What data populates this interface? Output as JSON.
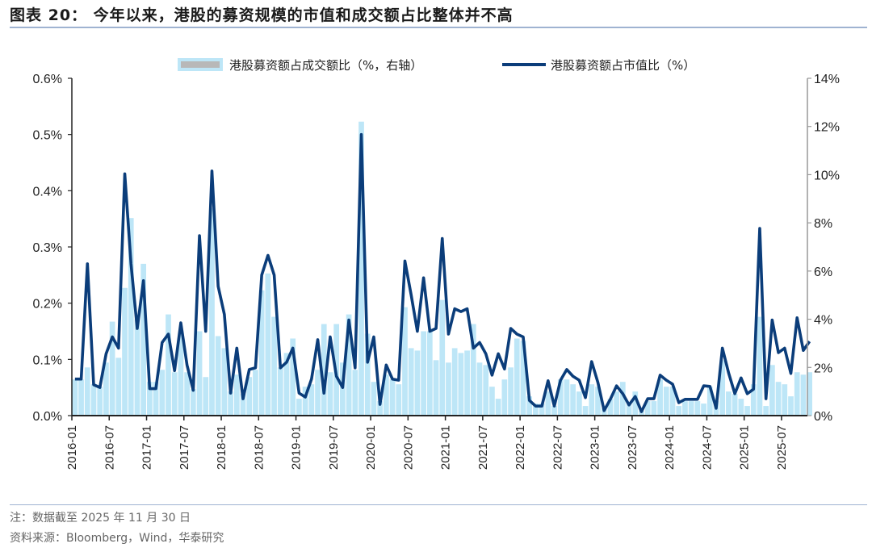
{
  "header": {
    "title": "图表 20：  今年以来，港股的募资规模的市值和成交额占比整体并不高"
  },
  "footer": {
    "note": "注：数据截至 2025 年 11 月 30 日",
    "source": "资料来源：Bloomberg，Wind，华泰研究"
  },
  "colors": {
    "line": "#0b3d7a",
    "bar": "#bde6f7",
    "legend_bar_inner": "#b8b8b8",
    "axis_left": "#222222",
    "axis_right": "#999999",
    "rule": "#9fb3d1"
  },
  "chart_data": {
    "type": "bar+line",
    "title": "今年以来，港股的募资规模的市值和成交额占比整体并不高",
    "legend": [
      {
        "name": "港股募资额占成交额比（%，右轴）",
        "type": "bar",
        "axis": "right"
      },
      {
        "name": "港股募资额占市值比（%）",
        "type": "line",
        "axis": "left"
      }
    ],
    "legend_position": "top",
    "left_axis": {
      "min": 0,
      "max": 0.6,
      "ticks": [
        "0.0%",
        "0.1%",
        "0.2%",
        "0.3%",
        "0.4%",
        "0.5%",
        "0.6%"
      ]
    },
    "right_axis": {
      "min": 0,
      "max": 14,
      "ticks": [
        "0%",
        "2%",
        "4%",
        "6%",
        "8%",
        "10%",
        "12%",
        "14%"
      ]
    },
    "x_tick_labels": [
      "2016-01",
      "2016-07",
      "2017-01",
      "2017-07",
      "2018-01",
      "2018-07",
      "2019-01",
      "2019-07",
      "2020-01",
      "2020-07",
      "2021-01",
      "2021-07",
      "2022-01",
      "2022-07",
      "2023-01",
      "2023-07",
      "2024-01",
      "2024-07",
      "2025-01",
      "2025-07"
    ],
    "x_start": "2016-01",
    "x_end": "2025-11",
    "grid": false,
    "series": [
      {
        "name": "港股募资额占成交额比（%，右轴）",
        "type": "bar",
        "axis": "right",
        "values": [
          1.5,
          1.5,
          2.0,
          1.3,
          1.2,
          2.2,
          3.9,
          2.4,
          5.3,
          8.2,
          4.0,
          6.3,
          1.4,
          1.4,
          1.9,
          4.2,
          1.8,
          3.4,
          1.8,
          1.1,
          3.5,
          1.6,
          8.6,
          3.3,
          2.8,
          1.0,
          1.7,
          0.9,
          1.6,
          1.9,
          5.2,
          5.9,
          4.1,
          2.0,
          2.6,
          3.2,
          0.7,
          1.2,
          1.3,
          1.9,
          3.8,
          1.8,
          3.8,
          2.2,
          4.2,
          1.9,
          12.2,
          3.4,
          1.4,
          0.6,
          1.7,
          1.5,
          1.3,
          4.5,
          2.8,
          2.7,
          3.5,
          3.5,
          2.3,
          4.8,
          2.2,
          2.8,
          2.6,
          2.7,
          3.8,
          2.2,
          2.1,
          1.2,
          0.7,
          1.5,
          2.0,
          3.2,
          3.1,
          0.8,
          0.5,
          0.5,
          1.0,
          0.4,
          1.5,
          1.5,
          1.3,
          1.0,
          0.4,
          1.3,
          1.2,
          0.3,
          0.7,
          1.0,
          1.4,
          0.5,
          1.0,
          0.2,
          0.6,
          0.6,
          1.5,
          1.2,
          1.2,
          0.4,
          0.6,
          0.6,
          0.6,
          0.5,
          1.2,
          0.6,
          2.3,
          1.0,
          0.9,
          0.7,
          0.4,
          1.3,
          4.1,
          0.4,
          2.1,
          1.4,
          1.3,
          0.8,
          1.8,
          1.7,
          1.8
        ]
      },
      {
        "name": "港股募资额占市值比（%）",
        "type": "line",
        "axis": "left",
        "values": [
          0.065,
          0.065,
          0.27,
          0.055,
          0.05,
          0.11,
          0.14,
          0.12,
          0.43,
          0.27,
          0.155,
          0.24,
          0.048,
          0.048,
          0.13,
          0.145,
          0.08,
          0.165,
          0.09,
          0.045,
          0.32,
          0.15,
          0.435,
          0.23,
          0.18,
          0.04,
          0.12,
          0.03,
          0.082,
          0.085,
          0.25,
          0.285,
          0.25,
          0.085,
          0.095,
          0.12,
          0.04,
          0.033,
          0.065,
          0.135,
          0.04,
          0.14,
          0.07,
          0.05,
          0.17,
          0.085,
          0.5,
          0.095,
          0.14,
          0.02,
          0.09,
          0.065,
          0.063,
          0.275,
          0.215,
          0.15,
          0.245,
          0.15,
          0.155,
          0.315,
          0.145,
          0.19,
          0.185,
          0.19,
          0.12,
          0.13,
          0.11,
          0.072,
          0.11,
          0.083,
          0.155,
          0.145,
          0.14,
          0.027,
          0.017,
          0.017,
          0.062,
          0.017,
          0.063,
          0.082,
          0.07,
          0.063,
          0.032,
          0.096,
          0.059,
          0.009,
          0.029,
          0.053,
          0.039,
          0.019,
          0.034,
          0.007,
          0.03,
          0.03,
          0.072,
          0.063,
          0.056,
          0.023,
          0.029,
          0.029,
          0.029,
          0.053,
          0.052,
          0.013,
          0.12,
          0.076,
          0.039,
          0.067,
          0.039,
          0.047,
          0.333,
          0.03,
          0.17,
          0.112,
          0.12,
          0.075,
          0.174,
          0.116,
          0.132
        ]
      }
    ]
  }
}
